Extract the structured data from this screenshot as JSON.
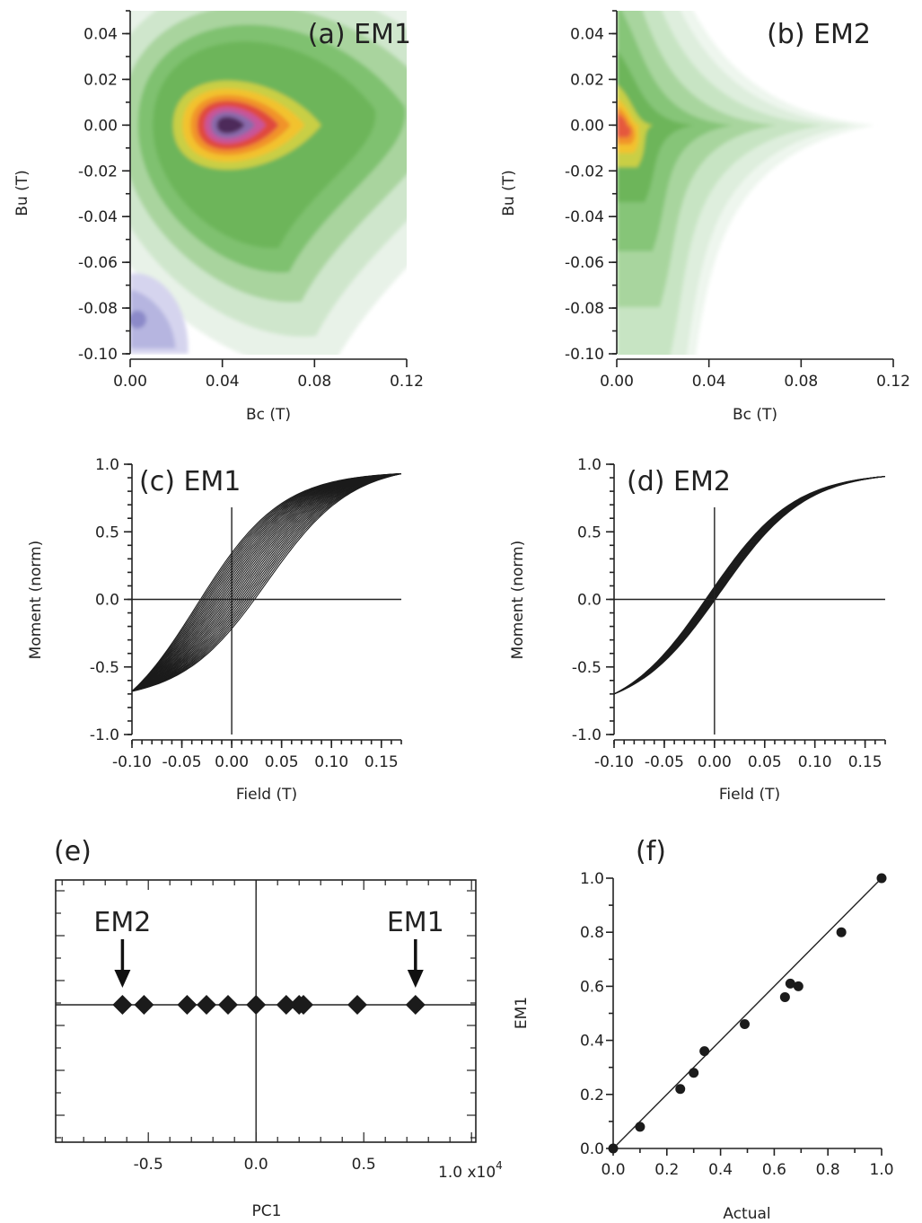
{
  "chart_data": [
    {
      "id": "a",
      "type": "heatmap",
      "title": "(a) EM1",
      "xlabel": "Bc (T)",
      "ylabel": "Bu (T)",
      "xlim": [
        0,
        0.12
      ],
      "ylim": [
        -0.1,
        0.05
      ],
      "xticks": [
        "0.00",
        "0.04",
        "0.08",
        "0.12"
      ],
      "yticks": [
        "0.04",
        "0.02",
        "0.00",
        "-0.02",
        "-0.04",
        "-0.06",
        "-0.08",
        "-0.10"
      ],
      "peak": {
        "Bc": 0.042,
        "Bu": 0.0
      },
      "negative_region": {
        "Bc": [
          0,
          0.022
        ],
        "Bu": [
          -0.1,
          -0.065
        ]
      },
      "colors": [
        "#e8f2e8",
        "#cfe6cc",
        "#a9d49e",
        "#7fc170",
        "#6db55a",
        "#c9cf45",
        "#f2c22e",
        "#f1932c",
        "#e04a3c",
        "#c8559a",
        "#8a6aab",
        "#4d2b5a"
      ]
    },
    {
      "id": "b",
      "type": "heatmap",
      "title": "(b) EM2",
      "xlabel": "Bc (T)",
      "ylabel": "Bu (T)",
      "xlim": [
        0,
        0.12
      ],
      "ylim": [
        -0.1,
        0.05
      ],
      "xticks": [
        "0.00",
        "0.04",
        "0.08",
        "0.12"
      ],
      "yticks": [
        "0.04",
        "0.02",
        "0.00",
        "-0.02",
        "-0.04",
        "-0.06",
        "-0.08",
        "-0.10"
      ],
      "peak": {
        "Bc": 0.0,
        "Bu": 0.0
      },
      "ridge_extent_Bc": 0.112
    },
    {
      "id": "c",
      "type": "line",
      "title": "(c) EM1",
      "xlabel": "Field (T)",
      "ylabel": "Moment (norm)",
      "xlim": [
        -0.1,
        0.17
      ],
      "ylim": [
        -1.0,
        1.0
      ],
      "xticks": [
        "-0.10",
        "-0.05",
        "0.00",
        "0.05",
        "0.10",
        "0.15"
      ],
      "yticks": [
        "1.0",
        "0.5",
        "0.0",
        "-0.5",
        "-1.0"
      ],
      "first_order_curves": 30,
      "moment_at_field_max": 0.93,
      "moment_at_field_min": -0.68,
      "Bc_max": 0.09
    },
    {
      "id": "d",
      "type": "line",
      "title": "(d) EM2",
      "xlabel": "Field (T)",
      "ylabel": "Moment (norm)",
      "xlim": [
        -0.1,
        0.17
      ],
      "ylim": [
        -1.0,
        1.0
      ],
      "xticks": [
        "-0.10",
        "-0.05",
        "0.00",
        "0.05",
        "0.10",
        "0.15"
      ],
      "yticks": [
        "1.0",
        "0.5",
        "0.0",
        "-0.5",
        "-1.0"
      ],
      "first_order_curves": 12,
      "moment_at_field_max": 0.91,
      "moment_at_field_min": -0.7
    },
    {
      "id": "e",
      "type": "scatter",
      "title": "(e)",
      "xlabel": "PC1",
      "x_multiplier": "1.0 x10",
      "x_multiplier_exp": "4",
      "xlim": [
        -0.93,
        1.02
      ],
      "xticks": [
        "-0.5",
        "0.0",
        "0.5"
      ],
      "x": [
        -0.62,
        -0.52,
        -0.32,
        -0.23,
        -0.13,
        0.0,
        0.14,
        0.2,
        0.22,
        0.47,
        0.74
      ],
      "y": [
        0,
        0,
        0,
        0,
        0,
        0,
        0,
        0,
        0,
        0,
        0
      ],
      "annotations": [
        {
          "text": "EM2",
          "x": -0.62
        },
        {
          "text": "EM1",
          "x": 0.74
        }
      ]
    },
    {
      "id": "f",
      "type": "scatter",
      "title": "(f)",
      "xlabel": "Actual",
      "ylabel": "EM1",
      "xlim": [
        0,
        1.0
      ],
      "ylim": [
        0,
        1.0
      ],
      "xticks": [
        "0.0",
        "0.2",
        "0.4",
        "0.6",
        "0.8",
        "1.0"
      ],
      "yticks": [
        "1.0",
        "0.8",
        "0.6",
        "0.4",
        "0.2",
        "0.0"
      ],
      "x": [
        0.0,
        0.1,
        0.25,
        0.3,
        0.34,
        0.49,
        0.64,
        0.66,
        0.69,
        0.85,
        1.0
      ],
      "y": [
        0.0,
        0.08,
        0.22,
        0.28,
        0.36,
        0.46,
        0.56,
        0.61,
        0.6,
        0.8,
        1.0
      ],
      "fit_line": [
        [
          0,
          0
        ],
        [
          1,
          1
        ]
      ]
    }
  ]
}
